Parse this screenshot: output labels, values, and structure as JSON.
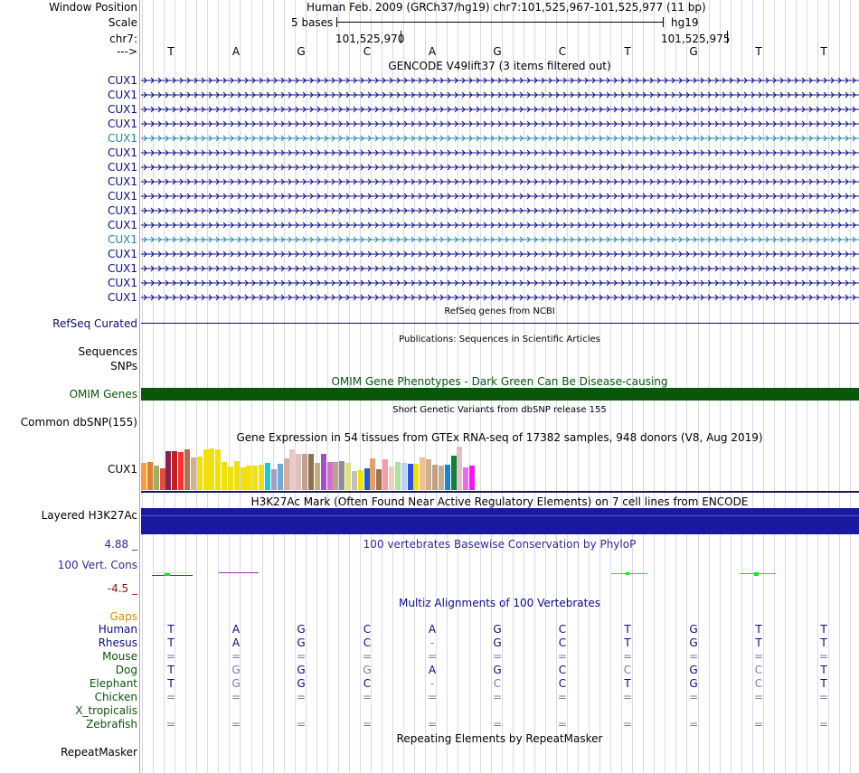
{
  "header": {
    "window_position_label": "Window Position",
    "window_position_text": "Human Feb. 2009 (GRCh37/hg19)   chr7:101,525,967-101,525,977 (11 bp)",
    "scale_label": "Scale",
    "scale_text": "5 bases",
    "assembly": "hg19",
    "chrom_label": "chr7:",
    "pos_left": "101,525,970",
    "pos_right": "101,525,975",
    "strand_label": "--->"
  },
  "sequence": [
    "T",
    "A",
    "G",
    "C",
    "A",
    "G",
    "C",
    "T",
    "G",
    "T",
    "T"
  ],
  "gencode": {
    "title": "GENCODE V49lift37 (3 items filtered out)",
    "rows": [
      {
        "label": "CUX1",
        "color": "#0a0a88"
      },
      {
        "label": "CUX1",
        "color": "#0a0a88"
      },
      {
        "label": "CUX1",
        "color": "#0a0a88"
      },
      {
        "label": "CUX1",
        "color": "#0a0a88"
      },
      {
        "label": "CUX1",
        "color": "#1a88a8"
      },
      {
        "label": "CUX1",
        "color": "#0a0a88"
      },
      {
        "label": "CUX1",
        "color": "#0a0a88"
      },
      {
        "label": "CUX1",
        "color": "#0a0a88"
      },
      {
        "label": "CUX1",
        "color": "#0a0a88"
      },
      {
        "label": "CUX1",
        "color": "#0a0a88"
      },
      {
        "label": "CUX1",
        "color": "#0a0a88"
      },
      {
        "label": "CUX1",
        "color": "#1a88a8"
      },
      {
        "label": "CUX1",
        "color": "#0a0a88"
      },
      {
        "label": "CUX1",
        "color": "#0a0a88"
      },
      {
        "label": "CUX1",
        "color": "#0a0a88"
      },
      {
        "label": "CUX1",
        "color": "#0a0a88"
      }
    ]
  },
  "refseq": {
    "title": "RefSeq genes from NCBI",
    "label": "RefSeq Curated",
    "color": "#0c0c78"
  },
  "publications": {
    "title": "Publications: Sequences in Scientific Articles",
    "label": "Sequences"
  },
  "snps_label": "SNPs",
  "omim": {
    "title": "OMIM Gene Phenotypes - Dark Green Can Be Disease-causing",
    "label": "OMIM Genes",
    "color": "#0a560a",
    "title_color": "#0a560a"
  },
  "dbsnp": {
    "title": "Short Genetic Variants from dbSNP release 155",
    "label": "Common dbSNP(155)"
  },
  "gtex": {
    "title": "Gene Expression in 54 tissues from GTEx RNA-seq of 17382 samples, 948 donors (V8, Aug 2019)",
    "label": "CUX1",
    "values": [
      30,
      31,
      27,
      24,
      43,
      43,
      42,
      45,
      36,
      37,
      45,
      46,
      45,
      31,
      26,
      32,
      25,
      27,
      27,
      28,
      30,
      23,
      29,
      35,
      45,
      40,
      40,
      40,
      30,
      40,
      31,
      31,
      32,
      30,
      21,
      22,
      24,
      35,
      23,
      34,
      26,
      31,
      30,
      29,
      29,
      36,
      34,
      28,
      27,
      28,
      38,
      48,
      25,
      27
    ],
    "colors": [
      "#f0a040",
      "#e08030",
      "#a0b060",
      "#e05040",
      "#8b2050",
      "#c02020",
      "#ff3030",
      "#b07050",
      "#d0b090",
      "#f0e010",
      "#f0e010",
      "#f0e010",
      "#f0e010",
      "#f0e010",
      "#f0e010",
      "#f0e010",
      "#f0e010",
      "#f0e010",
      "#f0e010",
      "#f0e010",
      "#20c8c8",
      "#a0a0c0",
      "#70a8d8",
      "#d0b0a0",
      "#e8c8c8",
      "#e0c0b8",
      "#c0a090",
      "#907050",
      "#c0b080",
      "#a050c0",
      "#d070d0",
      "#c0a090",
      "#909090",
      "#e0e080",
      "#c0c0c0",
      "#f0e010",
      "#2060c0",
      "#e0a070",
      "#a07050",
      "#f0a0a0",
      "#f0d0c0",
      "#b0e0a0",
      "#c0d0f0",
      "#3050e0",
      "#f0e010",
      "#f0c090",
      "#d0b090",
      "#c0a080",
      "#c0b090",
      "#2080d0",
      "#108040",
      "#e0c0c0",
      "#e070e0",
      "#ff10ff"
    ]
  },
  "h3k27ac": {
    "title": "H3K27Ac Mark (Often Found Near Active Regulatory Elements) on 7 cell lines from ENCODE",
    "label": "Layered H3K27Ac",
    "color": "#1a1aa0"
  },
  "conservation": {
    "title": "100 vertebrates Basewise Conservation by PhyloP",
    "label": "100 Vert. Cons",
    "max": "4.88 _",
    "min": "-4.5 _",
    "label_color": "#2c2c9a",
    "min_color": "#8b1010"
  },
  "multiz": {
    "title": "Multiz Alignments of 100 Vertebrates",
    "gaps_label": "Gaps",
    "rows": [
      {
        "species": "Human",
        "color": "#0a0a88",
        "bases": [
          "T",
          "A",
          "G",
          "C",
          "A",
          "G",
          "C",
          "T",
          "G",
          "T",
          "T"
        ]
      },
      {
        "species": "Rhesus",
        "color": "#0a0a88",
        "bases": [
          "T",
          "A",
          "G",
          "C",
          "-",
          "G",
          "C",
          "T",
          "G",
          "T",
          "T"
        ]
      },
      {
        "species": "Mouse",
        "color": "#0a560a",
        "bases": [
          "=",
          "=",
          "=",
          "=",
          "=",
          "=",
          "=",
          "=",
          "=",
          "=",
          "="
        ]
      },
      {
        "species": "Dog",
        "color": "#0a560a",
        "bases": [
          "T",
          "G",
          "G",
          "G",
          "A",
          "G",
          "C",
          "C",
          "G",
          "C",
          "T"
        ]
      },
      {
        "species": "Elephant",
        "color": "#0a560a",
        "bases": [
          "T",
          "G",
          "G",
          "C",
          "-",
          "C",
          "C",
          "T",
          "G",
          "C",
          "T"
        ]
      },
      {
        "species": "Chicken",
        "color": "#0a560a",
        "bases": [
          "=",
          "=",
          "=",
          "=",
          "=",
          "=",
          "=",
          "=",
          "=",
          "=",
          "="
        ]
      },
      {
        "species": "X_tropicalis",
        "color": "#0a560a",
        "bases": []
      },
      {
        "species": "Zebrafish",
        "color": "#0a560a",
        "bases": [
          "=",
          "=",
          "=",
          "=",
          "=",
          "=",
          "=",
          "=",
          "=",
          "=",
          "="
        ]
      }
    ]
  },
  "repeatmasker": {
    "title": "Repeating Elements by RepeatMasker",
    "label": "RepeatMasker"
  }
}
